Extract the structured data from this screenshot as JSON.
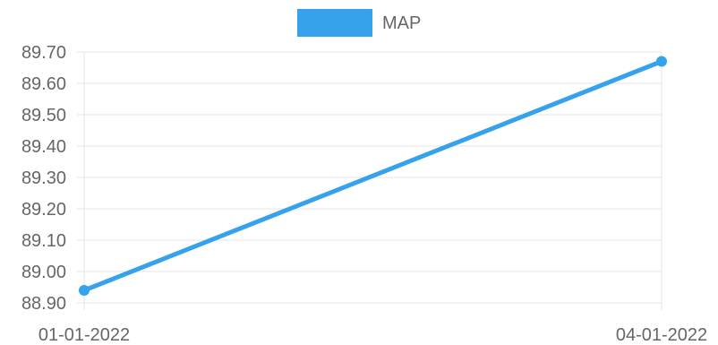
{
  "chart_data": {
    "type": "line",
    "title": "",
    "xlabel": "",
    "ylabel": "",
    "categories": [
      "01-01-2022",
      "04-01-2022"
    ],
    "series": [
      {
        "name": "MAP",
        "values": [
          88.94,
          89.67
        ],
        "color": "#36a2eb"
      }
    ],
    "ylim": [
      88.9,
      89.7
    ],
    "yticks": [
      "89.70",
      "89.60",
      "89.50",
      "89.40",
      "89.30",
      "89.20",
      "89.10",
      "89.00",
      "88.90"
    ],
    "grid": true,
    "legend": "top-center"
  }
}
